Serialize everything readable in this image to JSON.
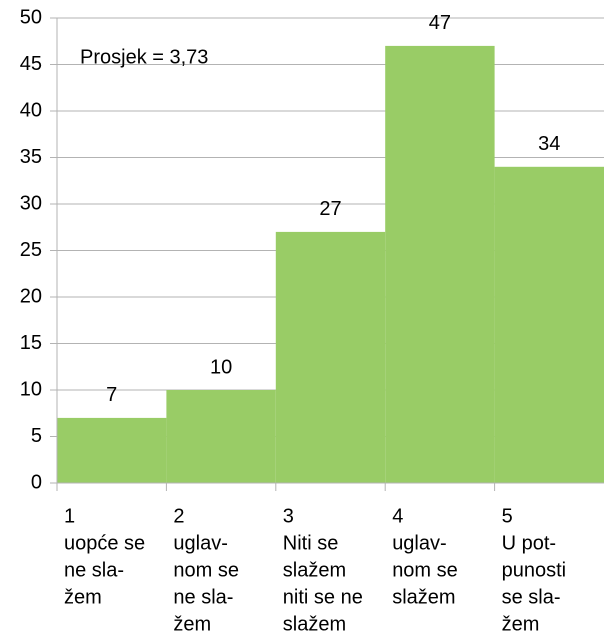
{
  "chart_data": {
    "type": "bar",
    "annotation": "Prosjek = 3,73",
    "categories": [
      [
        "1",
        "uopće se",
        "ne sla-",
        "žem"
      ],
      [
        "2",
        "uglav-",
        "nom se",
        "ne sla-",
        "žem"
      ],
      [
        "3",
        "Niti se",
        "slažem",
        "niti se ne",
        "slažem"
      ],
      [
        "4",
        "uglav-",
        "nom se",
        "slažem"
      ],
      [
        "5",
        "U pot-",
        "punosti",
        "se sla-",
        "žem"
      ]
    ],
    "values": [
      7,
      10,
      27,
      47,
      34
    ],
    "color": "#99cc66",
    "ylim": [
      0,
      50
    ],
    "yticks": [
      0,
      5,
      10,
      15,
      20,
      25,
      30,
      35,
      40,
      45,
      50
    ],
    "grid": true
  }
}
